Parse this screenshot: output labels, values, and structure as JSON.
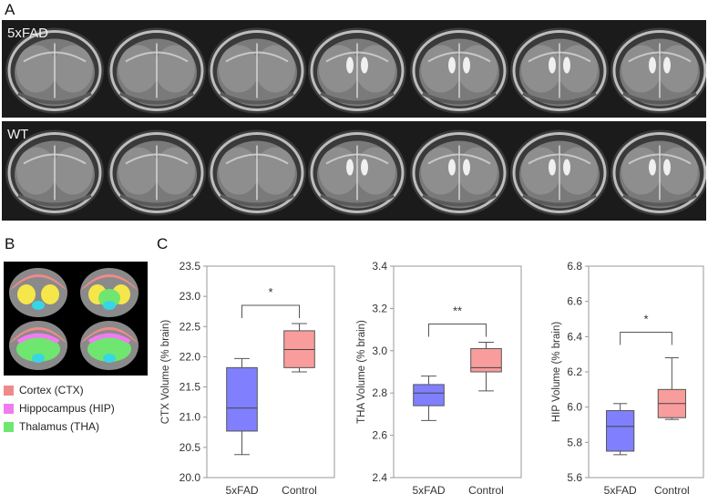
{
  "panels": {
    "a_label": "A",
    "b_label": "B",
    "c_label": "C"
  },
  "mri": {
    "row1_label": "5xFAD",
    "row2_label": "WT",
    "slice_count": 7
  },
  "atlas_legend": [
    {
      "label": "Cortex (CTX)",
      "color": "#f08a8a"
    },
    {
      "label": "Hippocampus (HIP)",
      "color": "#f07cf0"
    },
    {
      "label": "Thalamus (THA)",
      "color": "#6fe66f"
    }
  ],
  "atlas_colors": {
    "cortex": "#f08a8a",
    "hippocampus": "#f07cf0",
    "thalamus": "#6fe66f",
    "yellow": "#f5e64a",
    "cyan": "#37d6e6",
    "grey": "#8a8a8a"
  },
  "chart_data": [
    {
      "type": "box",
      "ylabel": "CTX Volume (% brain)",
      "ylim": [
        20.0,
        23.5
      ],
      "yticks": [
        "20.0",
        "20.5",
        "21.0",
        "21.5",
        "22.0",
        "22.5",
        "23.0",
        "23.5"
      ],
      "categories": [
        "5xFAD",
        "Control"
      ],
      "boxes": [
        {
          "name": "5xFAD",
          "min": 20.38,
          "q1": 20.77,
          "median": 21.15,
          "q3": 21.82,
          "max": 21.97,
          "color": "#8080ff"
        },
        {
          "name": "Control",
          "min": 21.75,
          "q1": 21.82,
          "median": 22.12,
          "q3": 22.43,
          "max": 22.55,
          "color": "#f89c9c"
        }
      ],
      "significance": "*"
    },
    {
      "type": "box",
      "ylabel": "THA Volume (% brain)",
      "ylim": [
        2.4,
        3.4
      ],
      "yticks": [
        "2.4",
        "2.6",
        "2.8",
        "3.0",
        "3.2",
        "3.4"
      ],
      "categories": [
        "5xFAD",
        "Control"
      ],
      "boxes": [
        {
          "name": "5xFAD",
          "min": 2.67,
          "q1": 2.74,
          "median": 2.8,
          "q3": 2.84,
          "max": 2.88,
          "color": "#8080ff"
        },
        {
          "name": "Control",
          "min": 2.81,
          "q1": 2.9,
          "median": 2.92,
          "q3": 3.01,
          "max": 3.04,
          "color": "#f89c9c"
        }
      ],
      "significance": "**"
    },
    {
      "type": "box",
      "ylabel": "HIP Volume (% brain)",
      "ylim": [
        5.6,
        6.8
      ],
      "yticks": [
        "5.6",
        "5.8",
        "6.0",
        "6.2",
        "6.4",
        "6.6",
        "6.8"
      ],
      "categories": [
        "5xFAD",
        "Control"
      ],
      "boxes": [
        {
          "name": "5xFAD",
          "min": 5.73,
          "q1": 5.75,
          "median": 5.89,
          "q3": 5.98,
          "max": 6.02,
          "color": "#8080ff"
        },
        {
          "name": "Control",
          "min": 5.93,
          "q1": 5.94,
          "median": 6.02,
          "q3": 6.1,
          "max": 6.28,
          "color": "#f89c9c"
        }
      ],
      "significance": "*"
    }
  ]
}
